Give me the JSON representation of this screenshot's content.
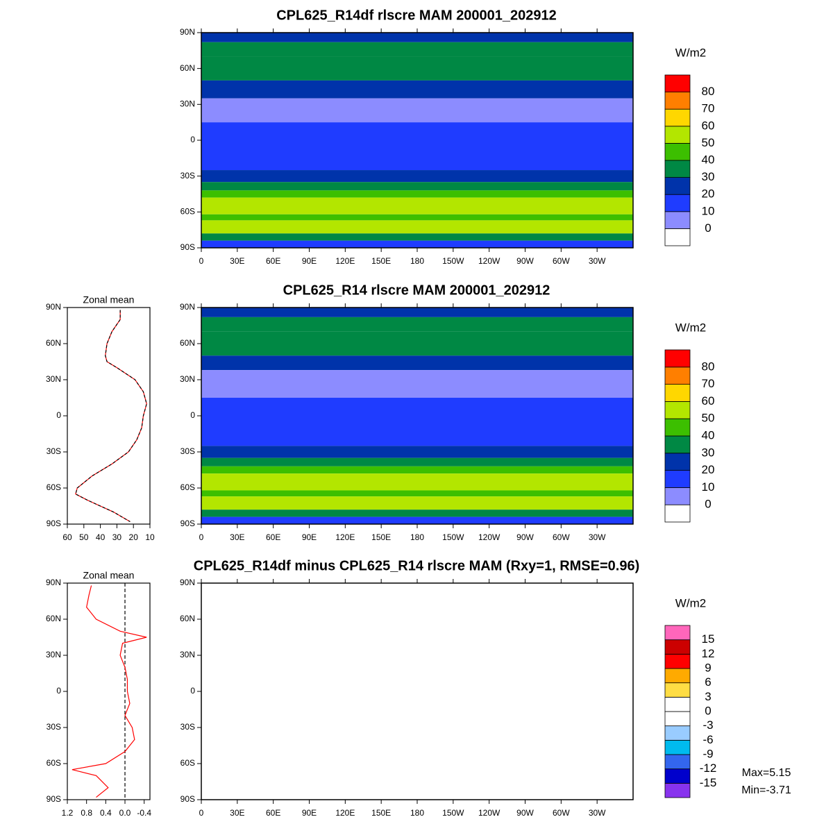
{
  "chart_data": [
    {
      "type": "map",
      "title": "CPL625_R14df rlscre MAM 200001_202912",
      "units": "W/m2",
      "xlim": [
        0,
        360
      ],
      "ylim": [
        -90,
        90
      ],
      "xticks": [
        0,
        {
          "value": 30,
          "label": "30E"
        },
        {
          "value": 60,
          "label": "60E"
        },
        {
          "value": 90,
          "label": "90E"
        },
        {
          "value": 120,
          "label": "120E"
        },
        {
          "value": 150,
          "label": "150E"
        },
        180,
        {
          "value": 210,
          "label": "150W"
        },
        {
          "value": 240,
          "label": "120W"
        },
        {
          "value": 270,
          "label": "90W"
        },
        {
          "value": 300,
          "label": "60W"
        },
        {
          "value": 330,
          "label": "30W"
        }
      ],
      "yticks": [
        {
          "value": 90,
          "label": "90N"
        },
        {
          "value": 60,
          "label": "60N"
        },
        {
          "value": 30,
          "label": "30N"
        },
        0,
        {
          "value": -30,
          "label": "30S"
        },
        {
          "value": -60,
          "label": "60S"
        },
        {
          "value": -90,
          "label": "90S"
        }
      ],
      "colorbar": {
        "levels": [
          0,
          10,
          20,
          30,
          40,
          50,
          60,
          70,
          80
        ],
        "colors": [
          "#ffffff",
          "#8c8cff",
          "#1f3cff",
          "#0033aa",
          "#008844",
          "#3cbf00",
          "#b3e600",
          "#ffd700",
          "#ff7f00",
          "#ff0000"
        ]
      },
      "bands": [
        {
          "lat": [
            90,
            82
          ],
          "level": 20
        },
        {
          "lat": [
            82,
            70
          ],
          "level": 30
        },
        {
          "lat": [
            70,
            50
          ],
          "level": 30
        },
        {
          "lat": [
            50,
            35
          ],
          "level": 20
        },
        {
          "lat": [
            35,
            15
          ],
          "level": 0
        },
        {
          "lat": [
            15,
            -25
          ],
          "level": 10
        },
        {
          "lat": [
            -25,
            -35
          ],
          "level": 20
        },
        {
          "lat": [
            -35,
            -42
          ],
          "level": 30
        },
        {
          "lat": [
            -42,
            -48
          ],
          "level": 40
        },
        {
          "lat": [
            -48,
            -62
          ],
          "level": 50
        },
        {
          "lat": [
            -62,
            -67
          ],
          "level": 40
        },
        {
          "lat": [
            -67,
            -78
          ],
          "level": 50
        },
        {
          "lat": [
            -78,
            -84
          ],
          "level": 30
        },
        {
          "lat": [
            -84,
            -90
          ],
          "level": 10
        }
      ]
    },
    {
      "type": "line",
      "title": "Zonal mean",
      "xlim": [
        60,
        10
      ],
      "ylim": [
        -90,
        90
      ],
      "xticks": [
        60,
        50,
        40,
        30,
        20,
        10
      ],
      "yticks": [
        {
          "value": 90,
          "label": "90N"
        },
        {
          "value": 60,
          "label": "60N"
        },
        {
          "value": 30,
          "label": "30N"
        },
        0,
        {
          "value": -30,
          "label": "30S"
        },
        {
          "value": -60,
          "label": "60S"
        },
        {
          "value": -90,
          "label": "90S"
        }
      ],
      "y": [
        88,
        80,
        70,
        60,
        50,
        45,
        40,
        30,
        20,
        10,
        0,
        -10,
        -20,
        -30,
        -40,
        -50,
        -60,
        -65,
        -70,
        -80,
        -88
      ],
      "series": [
        {
          "color": "#ff0000",
          "values": [
            28,
            28,
            33,
            36,
            37,
            36,
            30,
            19,
            14,
            12,
            14,
            15,
            18,
            23,
            33,
            45,
            54,
            55,
            48,
            32,
            22
          ]
        },
        {
          "color": "#000000",
          "dashed": true,
          "values": [
            28,
            28,
            33,
            36,
            37,
            36,
            30,
            19,
            14,
            12,
            14,
            15,
            18,
            23,
            33,
            45,
            54,
            55,
            48,
            32,
            22
          ]
        }
      ]
    },
    {
      "type": "map",
      "title": "CPL625_R14 rlscre MAM 200001_202912",
      "units": "W/m2",
      "xlim": [
        0,
        360
      ],
      "ylim": [
        -90,
        90
      ],
      "xticks": [
        0,
        {
          "value": 30,
          "label": "30E"
        },
        {
          "value": 60,
          "label": "60E"
        },
        {
          "value": 90,
          "label": "90E"
        },
        {
          "value": 120,
          "label": "120E"
        },
        {
          "value": 150,
          "label": "150E"
        },
        180,
        {
          "value": 210,
          "label": "150W"
        },
        {
          "value": 240,
          "label": "120W"
        },
        {
          "value": 270,
          "label": "90W"
        },
        {
          "value": 300,
          "label": "60W"
        },
        {
          "value": 330,
          "label": "30W"
        }
      ],
      "yticks": [
        {
          "value": 90,
          "label": "90N"
        },
        {
          "value": 60,
          "label": "60N"
        },
        {
          "value": 30,
          "label": "30N"
        },
        0,
        {
          "value": -30,
          "label": "30S"
        },
        {
          "value": -60,
          "label": "60S"
        },
        {
          "value": -90,
          "label": "90S"
        }
      ],
      "colorbar": {
        "levels": [
          0,
          10,
          20,
          30,
          40,
          50,
          60,
          70,
          80
        ],
        "colors": [
          "#ffffff",
          "#8c8cff",
          "#1f3cff",
          "#0033aa",
          "#008844",
          "#3cbf00",
          "#b3e600",
          "#ffd700",
          "#ff7f00",
          "#ff0000"
        ]
      },
      "bands": [
        {
          "lat": [
            90,
            82
          ],
          "level": 20
        },
        {
          "lat": [
            82,
            70
          ],
          "level": 30
        },
        {
          "lat": [
            70,
            50
          ],
          "level": 30
        },
        {
          "lat": [
            50,
            38
          ],
          "level": 20
        },
        {
          "lat": [
            38,
            15
          ],
          "level": 0
        },
        {
          "lat": [
            15,
            -25
          ],
          "level": 10
        },
        {
          "lat": [
            -25,
            -35
          ],
          "level": 20
        },
        {
          "lat": [
            -35,
            -42
          ],
          "level": 30
        },
        {
          "lat": [
            -42,
            -48
          ],
          "level": 40
        },
        {
          "lat": [
            -48,
            -62
          ],
          "level": 50
        },
        {
          "lat": [
            -62,
            -67
          ],
          "level": 40
        },
        {
          "lat": [
            -67,
            -78
          ],
          "level": 50
        },
        {
          "lat": [
            -78,
            -84
          ],
          "level": 30
        },
        {
          "lat": [
            -84,
            -90
          ],
          "level": 10
        }
      ]
    },
    {
      "type": "line",
      "title": "Zonal mean",
      "xlim": [
        1.2,
        -0.52
      ],
      "ylim": [
        -90,
        90
      ],
      "xticks": [
        1.2,
        0.8,
        0.4,
        {
          "value": 0,
          "label": "0.0"
        },
        -0.4
      ],
      "yticks": [
        {
          "value": 90,
          "label": "90N"
        },
        {
          "value": 60,
          "label": "60N"
        },
        {
          "value": 30,
          "label": "30N"
        },
        0,
        {
          "value": -30,
          "label": "30S"
        },
        {
          "value": -60,
          "label": "60S"
        },
        {
          "value": -90,
          "label": "90S"
        }
      ],
      "y": [
        88,
        80,
        70,
        60,
        50,
        45,
        40,
        30,
        20,
        10,
        0,
        -10,
        -20,
        -30,
        -40,
        -50,
        -60,
        -65,
        -70,
        -80,
        -88
      ],
      "zero_line": true,
      "series": [
        {
          "color": "#ff0000",
          "values": [
            0.7,
            0.75,
            0.8,
            0.6,
            0.1,
            -0.45,
            0.05,
            0.1,
            0.0,
            -0.05,
            -0.05,
            -0.1,
            0.0,
            -0.15,
            -0.2,
            0.0,
            0.4,
            1.1,
            0.6,
            0.35,
            0.6
          ]
        }
      ]
    },
    {
      "type": "map",
      "title": "CPL625_R14df minus CPL625_R14 rlscre MAM (Rxy=1, RMSE=0.96)",
      "units": "W/m2",
      "xlim": [
        0,
        360
      ],
      "ylim": [
        -90,
        90
      ],
      "xticks": [
        0,
        {
          "value": 30,
          "label": "30E"
        },
        {
          "value": 60,
          "label": "60E"
        },
        {
          "value": 90,
          "label": "90E"
        },
        {
          "value": 120,
          "label": "120E"
        },
        {
          "value": 150,
          "label": "150E"
        },
        180,
        {
          "value": 210,
          "label": "150W"
        },
        {
          "value": 240,
          "label": "120W"
        },
        {
          "value": 270,
          "label": "90W"
        },
        {
          "value": 300,
          "label": "60W"
        },
        {
          "value": 330,
          "label": "30W"
        }
      ],
      "yticks": [
        {
          "value": 90,
          "label": "90N"
        },
        {
          "value": 60,
          "label": "60N"
        },
        {
          "value": 30,
          "label": "30N"
        },
        0,
        {
          "value": -30,
          "label": "30S"
        },
        {
          "value": -60,
          "label": "60S"
        },
        {
          "value": -90,
          "label": "90S"
        }
      ],
      "colorbar": {
        "levels": [
          -15,
          -12,
          -9,
          -6,
          -3,
          0,
          3,
          6,
          9,
          12,
          15
        ],
        "colors": [
          "#8833ee",
          "#0000cc",
          "#3366ee",
          "#00bbee",
          "#99ccff",
          "#ffffff",
          "#ffffff",
          "#ffdd44",
          "#ffaa00",
          "#ff0000",
          "#cc0000",
          "#ff66bb"
        ]
      },
      "annotations": [
        "Max=5.15",
        "Min=-3.71"
      ]
    }
  ]
}
